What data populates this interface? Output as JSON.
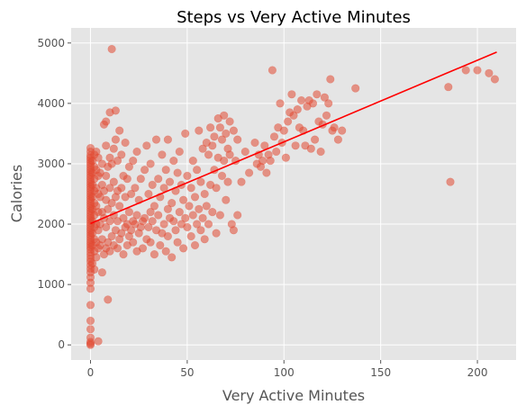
{
  "chart_data": {
    "type": "scatter",
    "title": "Steps vs Very Active Minutes",
    "xlabel": "Very Active Minutes",
    "ylabel": "Calories",
    "xlim": [
      -10,
      220
    ],
    "ylim": [
      -250,
      5250
    ],
    "xticks": [
      0,
      50,
      100,
      150,
      200
    ],
    "yticks": [
      0,
      1000,
      2000,
      3000,
      4000,
      5000
    ],
    "grid": true,
    "style": {
      "background": "#E5E5E5",
      "point_color": "#E24A33",
      "point_alpha": 0.55,
      "trend_color": "#FF0000"
    },
    "trendline": {
      "x": [
        0,
        210
      ],
      "y": [
        2010,
        4850
      ]
    },
    "series": [
      {
        "points": [
          [
            0,
            0
          ],
          [
            0,
            20
          ],
          [
            0,
            50
          ],
          [
            0,
            120
          ],
          [
            0,
            260
          ],
          [
            0,
            400
          ],
          [
            0,
            660
          ],
          [
            0,
            930
          ],
          [
            0,
            1030
          ],
          [
            0,
            1120
          ],
          [
            0,
            1200
          ],
          [
            0,
            1260
          ],
          [
            0,
            1320
          ],
          [
            0,
            1380
          ],
          [
            0,
            1430
          ],
          [
            0,
            1480
          ],
          [
            0,
            1530
          ],
          [
            0,
            1580
          ],
          [
            0,
            1620
          ],
          [
            0,
            1660
          ],
          [
            0,
            1700
          ],
          [
            0,
            1740
          ],
          [
            0,
            1780
          ],
          [
            0,
            1820
          ],
          [
            0,
            1860
          ],
          [
            0,
            1900
          ],
          [
            0,
            1940
          ],
          [
            0,
            1980
          ],
          [
            0,
            2020
          ],
          [
            0,
            2060
          ],
          [
            0,
            2100
          ],
          [
            0,
            2140
          ],
          [
            0,
            2180
          ],
          [
            0,
            2220
          ],
          [
            0,
            2260
          ],
          [
            0,
            2300
          ],
          [
            0,
            2340
          ],
          [
            0,
            2380
          ],
          [
            0,
            2420
          ],
          [
            0,
            2460
          ],
          [
            0,
            2500
          ],
          [
            0,
            2540
          ],
          [
            0,
            2580
          ],
          [
            0,
            2620
          ],
          [
            0,
            2660
          ],
          [
            0,
            2700
          ],
          [
            0,
            2740
          ],
          [
            0,
            2780
          ],
          [
            0,
            2820
          ],
          [
            0,
            2860
          ],
          [
            0,
            2900
          ],
          [
            0,
            2940
          ],
          [
            0,
            2980
          ],
          [
            0,
            3020
          ],
          [
            0,
            3060
          ],
          [
            0,
            3100
          ],
          [
            0,
            3140
          ],
          [
            0,
            3200
          ],
          [
            0,
            3260
          ],
          [
            1,
            1350
          ],
          [
            1,
            1650
          ],
          [
            1,
            1850
          ],
          [
            1,
            2050
          ],
          [
            1,
            2250
          ],
          [
            1,
            2450
          ],
          [
            1,
            2650
          ],
          [
            1,
            2850
          ],
          [
            1,
            3050
          ],
          [
            2,
            1250
          ],
          [
            2,
            1550
          ],
          [
            2,
            1750
          ],
          [
            2,
            1950
          ],
          [
            2,
            2150
          ],
          [
            2,
            2350
          ],
          [
            2,
            2550
          ],
          [
            2,
            2750
          ],
          [
            2,
            2950
          ],
          [
            2,
            3150
          ],
          [
            3,
            1450
          ],
          [
            3,
            1700
          ],
          [
            3,
            2000
          ],
          [
            3,
            2300
          ],
          [
            3,
            2600
          ],
          [
            3,
            2900
          ],
          [
            3,
            3200
          ],
          [
            4,
            1600
          ],
          [
            4,
            1900
          ],
          [
            4,
            2200
          ],
          [
            4,
            2500
          ],
          [
            4,
            2800
          ],
          [
            4,
            3100
          ],
          [
            4,
            60
          ],
          [
            6,
            1200
          ],
          [
            7,
            3650
          ],
          [
            8,
            3700
          ],
          [
            9,
            750
          ],
          [
            10,
            3850
          ],
          [
            11,
            4900
          ],
          [
            13,
            3880
          ],
          [
            5,
            1650
          ],
          [
            5,
            2000
          ],
          [
            5,
            2450
          ],
          [
            5,
            2850
          ],
          [
            6,
            1750
          ],
          [
            6,
            2200
          ],
          [
            6,
            2650
          ],
          [
            6,
            3000
          ],
          [
            7,
            1500
          ],
          [
            7,
            2100
          ],
          [
            7,
            2550
          ],
          [
            8,
            1600
          ],
          [
            8,
            1950
          ],
          [
            8,
            2400
          ],
          [
            8,
            2800
          ],
          [
            8,
            3300
          ],
          [
            9,
            1700
          ],
          [
            9,
            2250
          ],
          [
            9,
            2950
          ],
          [
            10,
            1550
          ],
          [
            10,
            2050
          ],
          [
            10,
            2600
          ],
          [
            10,
            3100
          ],
          [
            11,
            1800
          ],
          [
            11,
            2350
          ],
          [
            11,
            3000
          ],
          [
            12,
            1650
          ],
          [
            12,
            2150
          ],
          [
            12,
            2700
          ],
          [
            12,
            3250
          ],
          [
            13,
            1900
          ],
          [
            13,
            2450
          ],
          [
            13,
            3400
          ],
          [
            14,
            1600
          ],
          [
            14,
            2050
          ],
          [
            14,
            2550
          ],
          [
            14,
            3050
          ],
          [
            15,
            1750
          ],
          [
            15,
            2300
          ],
          [
            15,
            3550
          ],
          [
            16,
            1850
          ],
          [
            16,
            2600
          ],
          [
            16,
            3150
          ],
          [
            17,
            1500
          ],
          [
            17,
            2100
          ],
          [
            17,
            2800
          ],
          [
            18,
            1950
          ],
          [
            18,
            2450
          ],
          [
            18,
            3350
          ],
          [
            19,
            1650
          ],
          [
            19,
            2000
          ],
          [
            19,
            2750
          ],
          [
            20,
            1800
          ],
          [
            20,
            2200
          ],
          [
            20,
            2950
          ],
          [
            21,
            1900
          ],
          [
            21,
            2500
          ],
          [
            22,
            1700
          ],
          [
            22,
            2050
          ],
          [
            22,
            3050
          ],
          [
            23,
            2000
          ],
          [
            23,
            2600
          ],
          [
            24,
            1550
          ],
          [
            24,
            2150
          ],
          [
            24,
            3200
          ],
          [
            25,
            1850
          ],
          [
            25,
            2400
          ],
          [
            26,
            1950
          ],
          [
            26,
            2750
          ],
          [
            27,
            1600
          ],
          [
            27,
            2050
          ],
          [
            28,
            2100
          ],
          [
            28,
            2900
          ],
          [
            29,
            1750
          ],
          [
            29,
            3300
          ],
          [
            30,
            1950
          ],
          [
            30,
            2500
          ],
          [
            31,
            1700
          ],
          [
            31,
            2200
          ],
          [
            31,
            3000
          ],
          [
            32,
            2050
          ],
          [
            32,
            2650
          ],
          [
            33,
            1500
          ],
          [
            33,
            2300
          ],
          [
            34,
            1900
          ],
          [
            34,
            3400
          ],
          [
            35,
            2150
          ],
          [
            35,
            2750
          ],
          [
            36,
            1650
          ],
          [
            36,
            2450
          ],
          [
            37,
            1850
          ],
          [
            37,
            3150
          ],
          [
            38,
            2000
          ],
          [
            38,
            2600
          ],
          [
            39,
            1550
          ],
          [
            39,
            2900
          ],
          [
            40,
            1800
          ],
          [
            40,
            2250
          ],
          [
            40,
            3400
          ],
          [
            41,
            2100
          ],
          [
            41,
            2700
          ],
          [
            42,
            1450
          ],
          [
            42,
            2350
          ],
          [
            43,
            2050
          ],
          [
            43,
            3050
          ],
          [
            44,
            1900
          ],
          [
            44,
            2550
          ],
          [
            45,
            1700
          ],
          [
            45,
            2850
          ],
          [
            46,
            2200
          ],
          [
            46,
            3200
          ],
          [
            47,
            2000
          ],
          [
            47,
            2650
          ],
          [
            48,
            1600
          ],
          [
            48,
            2400
          ],
          [
            49,
            2100
          ],
          [
            49,
            3500
          ],
          [
            50,
            1950
          ],
          [
            50,
            2800
          ],
          [
            51,
            2300
          ],
          [
            52,
            1800
          ],
          [
            52,
            2600
          ],
          [
            53,
            2150
          ],
          [
            53,
            3050
          ],
          [
            54,
            1650
          ],
          [
            54,
            2450
          ],
          [
            55,
            2000
          ],
          [
            55,
            2900
          ],
          [
            56,
            2250
          ],
          [
            56,
            3550
          ],
          [
            57,
            1900
          ],
          [
            57,
            2700
          ],
          [
            58,
            2100
          ],
          [
            58,
            3250
          ],
          [
            59,
            1750
          ],
          [
            59,
            2500
          ],
          [
            60,
            2300
          ],
          [
            60,
            3350
          ],
          [
            61,
            2000
          ],
          [
            61,
            3150
          ],
          [
            62,
            2650
          ],
          [
            62,
            3600
          ],
          [
            63,
            2200
          ],
          [
            63,
            3300
          ],
          [
            64,
            2900
          ],
          [
            64,
            3450
          ],
          [
            65,
            1850
          ],
          [
            65,
            2600
          ],
          [
            66,
            3100
          ],
          [
            66,
            3750
          ],
          [
            67,
            2150
          ],
          [
            67,
            3600
          ],
          [
            68,
            2800
          ],
          [
            68,
            3400
          ],
          [
            69,
            3050
          ],
          [
            69,
            3800
          ],
          [
            70,
            2400
          ],
          [
            70,
            3500
          ],
          [
            71,
            2700
          ],
          [
            71,
            3250
          ],
          [
            72,
            3150
          ],
          [
            72,
            3700
          ],
          [
            73,
            2000
          ],
          [
            74,
            1900
          ],
          [
            74,
            3550
          ],
          [
            75,
            3050
          ],
          [
            76,
            2150
          ],
          [
            76,
            3400
          ],
          [
            78,
            2700
          ],
          [
            80,
            3200
          ],
          [
            82,
            2850
          ],
          [
            85,
            3350
          ],
          [
            86,
            3000
          ],
          [
            87,
            3150
          ],
          [
            88,
            2950
          ],
          [
            89,
            3050
          ],
          [
            90,
            3300
          ],
          [
            91,
            2850
          ],
          [
            92,
            3150
          ],
          [
            93,
            3050
          ],
          [
            94,
            4550
          ],
          [
            95,
            3450
          ],
          [
            96,
            3200
          ],
          [
            97,
            3600
          ],
          [
            98,
            4000
          ],
          [
            99,
            3350
          ],
          [
            100,
            3550
          ],
          [
            101,
            3100
          ],
          [
            102,
            3700
          ],
          [
            103,
            3850
          ],
          [
            104,
            4150
          ],
          [
            105,
            3800
          ],
          [
            106,
            3300
          ],
          [
            107,
            3900
          ],
          [
            108,
            3600
          ],
          [
            109,
            4050
          ],
          [
            110,
            3550
          ],
          [
            111,
            3300
          ],
          [
            112,
            3950
          ],
          [
            113,
            4050
          ],
          [
            114,
            3250
          ],
          [
            115,
            4000
          ],
          [
            116,
            3400
          ],
          [
            117,
            4150
          ],
          [
            118,
            3700
          ],
          [
            119,
            3200
          ],
          [
            120,
            3650
          ],
          [
            121,
            4100
          ],
          [
            122,
            3800
          ],
          [
            123,
            4000
          ],
          [
            124,
            4400
          ],
          [
            125,
            3550
          ],
          [
            126,
            3600
          ],
          [
            128,
            3400
          ],
          [
            130,
            3550
          ],
          [
            137,
            4250
          ],
          [
            185,
            4270
          ],
          [
            186,
            2700
          ],
          [
            194,
            4550
          ],
          [
            200,
            4550
          ],
          [
            206,
            4500
          ],
          [
            209,
            4400
          ]
        ]
      }
    ]
  }
}
